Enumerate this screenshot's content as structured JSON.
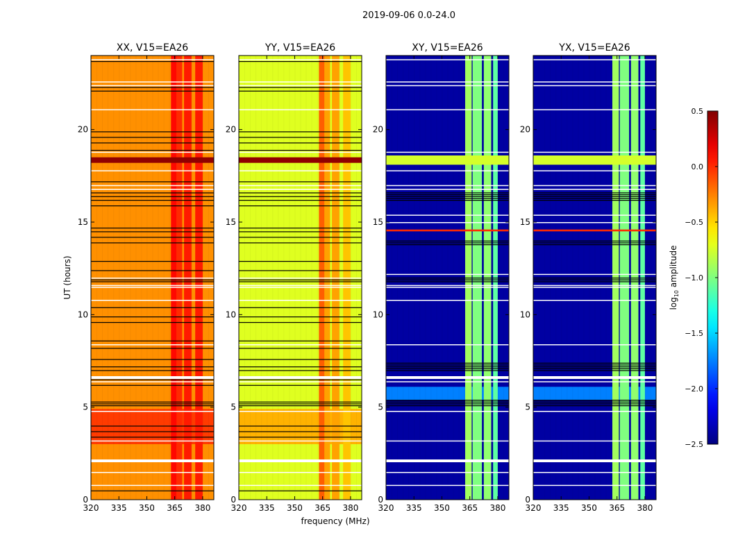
{
  "chart_data": {
    "type": "heatmap",
    "title": "2019-09-06 0.0-24.0",
    "xlabel": "frequency (MHz)",
    "ylabel": "UT (hours)",
    "xlim": [
      320,
      386
    ],
    "ylim": [
      0,
      24
    ],
    "xticks": [
      "320",
      "335",
      "350",
      "365",
      "380"
    ],
    "xtick_values": [
      320,
      335,
      350,
      365,
      380
    ],
    "yticks": [
      "0",
      "5",
      "10",
      "15",
      "20"
    ],
    "ytick_values": [
      0,
      5,
      10,
      15,
      20
    ],
    "colorbar": {
      "label_prefix": "log",
      "label_sub": "10",
      "label_suffix": " amplitude",
      "range": [
        -2.5,
        0.5
      ],
      "ticks": [
        "0.5",
        "0.0",
        "−0.5",
        "−1.0",
        "−1.5",
        "−2.0",
        "−2.5"
      ],
      "tick_values": [
        0.5,
        0.0,
        -0.5,
        -1.0,
        -1.5,
        -2.0,
        -2.5
      ],
      "colormap": "jet"
    },
    "panels": [
      {
        "title": "XX, V15=EA26",
        "background": -0.3,
        "time_segments": [
          {
            "t": [
              3.0,
              4.9
            ],
            "value": -0.05
          }
        ],
        "freq_bands": [
          {
            "f": [
              363,
              366
            ],
            "value": 0.1
          },
          {
            "f": [
              366,
              369
            ],
            "value": 0.0
          },
          {
            "f": [
              370,
              374
            ],
            "value": 0.05
          },
          {
            "f": [
              376,
              380
            ],
            "value": 0.05
          }
        ],
        "bright_rows": [
          {
            "t": [
              18.2,
              18.5
            ],
            "value": 0.45
          }
        ],
        "flagged_black": [
          23.7,
          22.3,
          22.1,
          19.9,
          19.6,
          19.3,
          18.9,
          17.2,
          16.6,
          16.4,
          16.2,
          15.9,
          14.7,
          14.5,
          14.2,
          13.9,
          12.9,
          12.4,
          11.9,
          11.8,
          10.4,
          9.9,
          9.6,
          8.6,
          8.2,
          7.6,
          7.2,
          7.0,
          6.5,
          6.2,
          5.3,
          5.2,
          5.1,
          4.0,
          3.7,
          3.4,
          0.5
        ],
        "flagged_white": [
          23.8,
          22.6,
          22.4,
          21.1,
          18.8,
          17.8,
          17.0,
          16.8,
          12.0,
          11.6,
          11.5,
          10.8,
          8.4,
          6.4,
          4.8,
          3.2,
          1.5,
          0.8
        ],
        "flagged_white_thick": [
          6.6,
          2.1
        ]
      },
      {
        "title": "YY, V15=EA26",
        "background": -0.72,
        "time_segments": [
          {
            "t": [
              3.0,
              4.9
            ],
            "value": -0.4
          }
        ],
        "freq_bands": [
          {
            "f": [
              363,
              366
            ],
            "value": -0.15
          },
          {
            "f": [
              366,
              369
            ],
            "value": -0.35
          },
          {
            "f": [
              370,
              374
            ],
            "value": -0.35
          },
          {
            "f": [
              376,
              380
            ],
            "value": -0.45
          }
        ],
        "bright_rows": [
          {
            "t": [
              18.2,
              18.5
            ],
            "value": 0.45
          }
        ],
        "flagged_black": [
          23.7,
          22.3,
          22.1,
          19.9,
          19.6,
          19.3,
          18.9,
          17.2,
          16.6,
          16.4,
          16.2,
          15.9,
          14.7,
          14.5,
          14.2,
          13.9,
          12.9,
          12.4,
          11.9,
          11.8,
          10.4,
          9.9,
          9.6,
          8.6,
          8.2,
          7.6,
          7.2,
          7.0,
          6.5,
          6.2,
          5.3,
          5.2,
          5.1,
          4.0,
          3.7,
          3.4,
          0.5
        ],
        "flagged_white": [
          23.8,
          22.6,
          22.4,
          21.1,
          18.8,
          17.8,
          17.0,
          16.8,
          12.0,
          11.6,
          11.5,
          10.8,
          8.4,
          6.4,
          4.8,
          3.2,
          1.5,
          0.8
        ],
        "flagged_white_thick": [
          6.6,
          2.1
        ]
      },
      {
        "title": "XY, V15=EA26",
        "background": -2.4,
        "time_segments": [
          {
            "t": [
              5.4,
              6.1
            ],
            "value": -1.75
          }
        ],
        "freq_bands": [
          {
            "f": [
              362.5,
              366
            ],
            "value": -0.9
          },
          {
            "f": [
              366.5,
              371.5
            ],
            "value": -1.0
          },
          {
            "f": [
              372.5,
              376.5
            ],
            "value": -0.95
          },
          {
            "f": [
              377.5,
              380
            ],
            "value": -1.1
          }
        ],
        "bright_rows": [
          {
            "t": [
              18.1,
              18.6
            ],
            "value": -0.75
          },
          {
            "t": [
              14.5,
              14.6
            ],
            "value": 0.0
          }
        ],
        "flagged_black": [
          16.6,
          16.5,
          16.4,
          16.3,
          16.2,
          14.0,
          13.9,
          13.8,
          12.0,
          11.9,
          11.8,
          7.4,
          7.3,
          7.2,
          7.1,
          7.0,
          5.4,
          5.3,
          5.2,
          5.1
        ],
        "flagged_white": [
          23.8,
          22.6,
          22.4,
          21.1,
          18.8,
          17.8,
          17.0,
          16.8,
          15.4,
          15.0,
          12.2,
          11.6,
          11.5,
          10.8,
          8.4,
          6.4,
          4.8,
          3.2,
          1.5,
          0.8
        ],
        "flagged_white_thick": [
          6.6,
          2.1
        ]
      },
      {
        "title": "YX, V15=EA26",
        "background": -2.4,
        "time_segments": [
          {
            "t": [
              5.4,
              6.1
            ],
            "value": -1.75
          }
        ],
        "freq_bands": [
          {
            "f": [
              362.5,
              366
            ],
            "value": -0.9
          },
          {
            "f": [
              366.5,
              371.5
            ],
            "value": -1.0
          },
          {
            "f": [
              372.5,
              376.5
            ],
            "value": -0.95
          },
          {
            "f": [
              377.5,
              380
            ],
            "value": -1.1
          }
        ],
        "bright_rows": [
          {
            "t": [
              18.1,
              18.6
            ],
            "value": -0.75
          },
          {
            "t": [
              14.5,
              14.6
            ],
            "value": 0.0
          }
        ],
        "flagged_black": [
          16.6,
          16.5,
          16.4,
          16.3,
          16.2,
          14.0,
          13.9,
          13.8,
          12.0,
          11.9,
          11.8,
          7.4,
          7.3,
          7.2,
          7.1,
          7.0,
          5.4,
          5.3,
          5.2,
          5.1
        ],
        "flagged_white": [
          23.8,
          22.6,
          22.4,
          21.1,
          18.8,
          17.8,
          17.0,
          16.8,
          15.4,
          15.0,
          12.2,
          11.6,
          11.5,
          10.8,
          8.4,
          6.4,
          4.8,
          3.2,
          1.5,
          0.8
        ],
        "flagged_white_thick": [
          6.6,
          2.1
        ]
      }
    ]
  }
}
